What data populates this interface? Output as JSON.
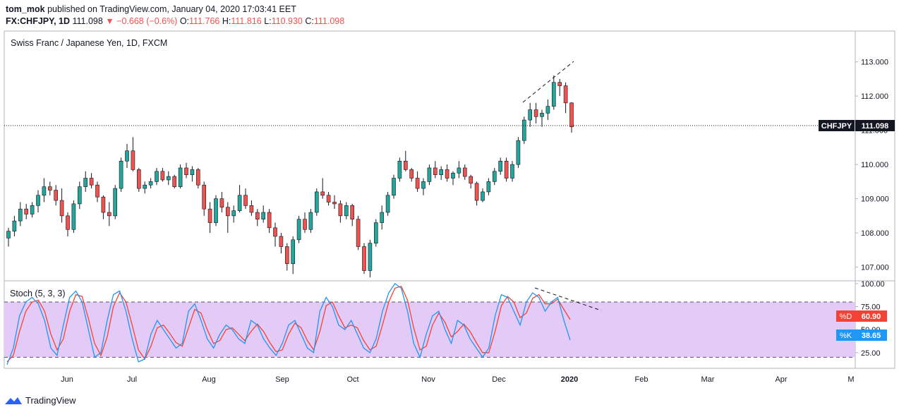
{
  "header": {
    "publisher": "tom_mok",
    "published_text": "published on TradingView.com, January 04, 2020 17:03:41 EET",
    "symbol": "FX:CHFJPY, 1D",
    "last": "111.098",
    "change": "−0.668 (−0.6%)",
    "o_label": "O:",
    "o": "111.766",
    "h_label": "H:",
    "h": "111.816",
    "l_label": "L:",
    "l": "110.930",
    "c_label": "C:",
    "c": "111.098"
  },
  "chart_data": {
    "type": "candlestick",
    "title": "Swiss Franc / Japanese Yen, 1D, FXCM",
    "price_axis": {
      "ticks": [
        107.0,
        108.0,
        109.0,
        110.0,
        111.0,
        112.0,
        113.0
      ],
      "tick_labels": [
        "107.000",
        "108.000",
        "109.000",
        "110.000",
        "111.000",
        "112.000",
        "113.000"
      ],
      "range": [
        106.6,
        113.9
      ]
    },
    "last_price": {
      "symbol": "CHFJPY",
      "value": 111.098,
      "label": "111.098"
    },
    "x_axis": {
      "labels": [
        "Jun",
        "Jul",
        "Aug",
        "Sep",
        "Oct",
        "Nov",
        "Dec",
        "2020",
        "Feb",
        "Mar",
        "Apr",
        "M"
      ]
    },
    "candles": [
      [
        107.85,
        108.15,
        107.6,
        108.05
      ],
      [
        108.05,
        108.5,
        107.9,
        108.35
      ],
      [
        108.35,
        108.9,
        108.2,
        108.7
      ],
      [
        108.7,
        108.85,
        108.4,
        108.55
      ],
      [
        108.55,
        108.9,
        108.45,
        108.8
      ],
      [
        108.8,
        109.25,
        108.6,
        109.1
      ],
      [
        109.1,
        109.6,
        108.9,
        109.35
      ],
      [
        109.35,
        109.5,
        109.1,
        109.25
      ],
      [
        109.25,
        109.4,
        108.8,
        108.95
      ],
      [
        108.95,
        109.3,
        108.3,
        108.5
      ],
      [
        108.5,
        108.6,
        107.9,
        108.1
      ],
      [
        108.1,
        108.95,
        108.0,
        108.85
      ],
      [
        108.85,
        109.5,
        108.7,
        109.35
      ],
      [
        109.35,
        109.8,
        109.2,
        109.6
      ],
      [
        109.6,
        109.75,
        109.3,
        109.4
      ],
      [
        109.4,
        109.5,
        108.9,
        109.05
      ],
      [
        109.05,
        109.1,
        108.4,
        108.6
      ],
      [
        108.6,
        108.9,
        108.2,
        108.5
      ],
      [
        108.5,
        109.4,
        108.4,
        109.3
      ],
      [
        109.3,
        110.2,
        109.2,
        110.1
      ],
      [
        110.1,
        110.6,
        109.9,
        110.4
      ],
      [
        110.4,
        110.8,
        109.8,
        109.85
      ],
      [
        109.85,
        109.9,
        109.2,
        109.3
      ],
      [
        109.3,
        109.5,
        109.15,
        109.4
      ],
      [
        109.4,
        109.6,
        109.3,
        109.5
      ],
      [
        109.5,
        109.9,
        109.4,
        109.8
      ],
      [
        109.8,
        109.9,
        109.5,
        109.55
      ],
      [
        109.55,
        109.8,
        109.4,
        109.65
      ],
      [
        109.65,
        109.7,
        109.3,
        109.35
      ],
      [
        109.35,
        110.0,
        109.3,
        109.9
      ],
      [
        109.9,
        110.05,
        109.6,
        109.7
      ],
      [
        109.7,
        109.95,
        109.5,
        109.85
      ],
      [
        109.85,
        109.9,
        109.3,
        109.4
      ],
      [
        109.4,
        109.5,
        108.5,
        108.7
      ],
      [
        108.7,
        108.9,
        108.0,
        108.3
      ],
      [
        108.3,
        109.1,
        108.2,
        109.0
      ],
      [
        109.0,
        109.2,
        108.6,
        108.75
      ],
      [
        108.75,
        108.9,
        108.0,
        108.5
      ],
      [
        108.5,
        108.8,
        108.3,
        108.65
      ],
      [
        108.65,
        109.4,
        108.6,
        109.1
      ],
      [
        109.1,
        109.3,
        108.7,
        108.8
      ],
      [
        108.8,
        108.95,
        108.5,
        108.6
      ],
      [
        108.6,
        108.7,
        108.2,
        108.4
      ],
      [
        108.4,
        108.8,
        108.3,
        108.6
      ],
      [
        108.6,
        108.7,
        108.0,
        108.15
      ],
      [
        108.15,
        108.3,
        107.6,
        107.9
      ],
      [
        107.9,
        108.0,
        107.4,
        107.6
      ],
      [
        107.6,
        107.7,
        106.9,
        107.1
      ],
      [
        107.1,
        107.9,
        106.8,
        107.8
      ],
      [
        107.8,
        108.5,
        107.7,
        108.4
      ],
      [
        108.4,
        108.6,
        108.0,
        108.1
      ],
      [
        108.1,
        108.7,
        108.0,
        108.6
      ],
      [
        108.6,
        109.3,
        108.5,
        109.2
      ],
      [
        109.2,
        109.6,
        109.0,
        109.1
      ],
      [
        109.1,
        109.2,
        108.8,
        108.9
      ],
      [
        108.9,
        109.1,
        108.7,
        108.85
      ],
      [
        108.85,
        108.95,
        108.3,
        108.5
      ],
      [
        108.5,
        108.9,
        108.4,
        108.8
      ],
      [
        108.8,
        108.85,
        108.2,
        108.4
      ],
      [
        108.4,
        108.5,
        107.5,
        107.6
      ],
      [
        107.6,
        107.7,
        106.8,
        106.9
      ],
      [
        106.9,
        107.8,
        106.7,
        107.7
      ],
      [
        107.7,
        108.4,
        107.6,
        108.3
      ],
      [
        108.3,
        108.8,
        108.1,
        108.6
      ],
      [
        108.6,
        109.2,
        108.5,
        109.1
      ],
      [
        109.1,
        109.7,
        109.0,
        109.6
      ],
      [
        109.6,
        110.2,
        109.5,
        110.1
      ],
      [
        110.1,
        110.4,
        109.8,
        109.85
      ],
      [
        109.85,
        109.9,
        109.5,
        109.6
      ],
      [
        109.6,
        109.8,
        109.2,
        109.3
      ],
      [
        109.3,
        109.6,
        109.1,
        109.5
      ],
      [
        109.5,
        110.0,
        109.4,
        109.9
      ],
      [
        109.9,
        110.1,
        109.6,
        109.7
      ],
      [
        109.7,
        109.95,
        109.55,
        109.85
      ],
      [
        109.85,
        110.0,
        109.5,
        109.6
      ],
      [
        109.6,
        109.8,
        109.4,
        109.75
      ],
      [
        109.75,
        110.1,
        109.6,
        109.9
      ],
      [
        109.9,
        110.0,
        109.55,
        109.65
      ],
      [
        109.65,
        109.7,
        109.3,
        109.45
      ],
      [
        109.45,
        109.5,
        108.8,
        108.95
      ],
      [
        108.95,
        109.3,
        108.9,
        109.2
      ],
      [
        109.2,
        109.6,
        109.1,
        109.5
      ],
      [
        109.5,
        109.9,
        109.4,
        109.8
      ],
      [
        109.8,
        110.2,
        109.7,
        110.1
      ],
      [
        110.1,
        110.2,
        109.5,
        109.6
      ],
      [
        109.6,
        110.1,
        109.5,
        110.0
      ],
      [
        110.0,
        110.8,
        109.9,
        110.7
      ],
      [
        110.7,
        111.4,
        110.6,
        111.3
      ],
      [
        111.3,
        111.8,
        111.1,
        111.6
      ],
      [
        111.6,
        111.8,
        111.2,
        111.4
      ],
      [
        111.4,
        111.6,
        111.1,
        111.5
      ],
      [
        111.5,
        111.9,
        111.3,
        111.7
      ],
      [
        111.7,
        112.6,
        111.6,
        112.4
      ],
      [
        112.4,
        112.5,
        112.0,
        112.3
      ],
      [
        112.3,
        112.4,
        111.5,
        111.8
      ],
      [
        111.8,
        111.82,
        110.93,
        111.1
      ]
    ],
    "candle_colors": {
      "up": "#26a69a",
      "down": "#ef5350"
    }
  },
  "stoch_data": {
    "title": "Stoch (5, 3, 3)",
    "ticks": [
      25,
      50,
      75,
      100
    ],
    "tick_labels": [
      "25.00",
      "50.00",
      "75.00",
      "100.00"
    ],
    "range": [
      8,
      103
    ],
    "band": [
      20,
      80
    ],
    "k_label": "%K",
    "k_value": "38.65",
    "d_label": "%D",
    "d_value": "60.90",
    "k": [
      12,
      30,
      65,
      80,
      85,
      78,
      60,
      30,
      22,
      55,
      85,
      92,
      80,
      50,
      20,
      25,
      60,
      88,
      92,
      70,
      40,
      15,
      18,
      45,
      60,
      50,
      40,
      30,
      35,
      70,
      78,
      60,
      40,
      30,
      45,
      55,
      50,
      40,
      35,
      60,
      55,
      40,
      30,
      22,
      35,
      55,
      60,
      45,
      30,
      25,
      70,
      85,
      75,
      55,
      50,
      60,
      45,
      30,
      25,
      40,
      70,
      90,
      100,
      95,
      70,
      35,
      20,
      45,
      65,
      70,
      50,
      35,
      60,
      55,
      40,
      30,
      20,
      30,
      65,
      88,
      85,
      70,
      55,
      80,
      90,
      85,
      70,
      80,
      85,
      60,
      38.65
    ],
    "d": [
      15,
      22,
      48,
      70,
      80,
      82,
      70,
      45,
      28,
      40,
      70,
      88,
      86,
      62,
      35,
      22,
      42,
      75,
      90,
      80,
      55,
      28,
      18,
      32,
      52,
      55,
      46,
      36,
      32,
      52,
      72,
      68,
      50,
      35,
      38,
      50,
      52,
      45,
      38,
      48,
      56,
      48,
      36,
      26,
      28,
      45,
      57,
      52,
      38,
      28,
      48,
      76,
      80,
      65,
      52,
      55,
      52,
      38,
      28,
      32,
      55,
      80,
      95,
      97,
      82,
      52,
      28,
      32,
      55,
      68,
      58,
      42,
      48,
      56,
      48,
      36,
      25,
      25,
      48,
      76,
      86,
      80,
      63,
      68,
      84,
      88,
      78,
      78,
      83,
      72,
      60.9
    ],
    "colors": {
      "k": "#2196f3",
      "d": "#f44336",
      "band_fill": "#e4cbf7"
    }
  },
  "footer": {
    "brand": "TradingView"
  }
}
